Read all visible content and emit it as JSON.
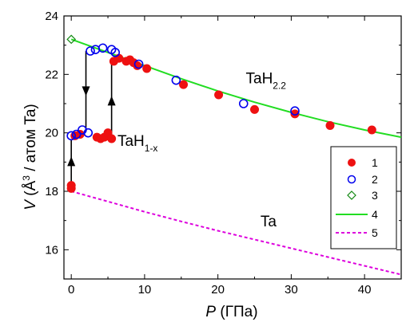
{
  "chart_data": {
    "type": "scatter",
    "xlim": [
      -1,
      45
    ],
    "ylim": [
      15,
      24
    ],
    "x_ticks": [
      {
        "value": 0,
        "label": "0"
      },
      {
        "value": 10,
        "label": "10"
      },
      {
        "value": 20,
        "label": "20"
      },
      {
        "value": 30,
        "label": "30"
      },
      {
        "value": 40,
        "label": "40"
      }
    ],
    "y_ticks": [
      {
        "value": 16,
        "label": "16"
      },
      {
        "value": 18,
        "label": "18"
      },
      {
        "value": 20,
        "label": "20"
      },
      {
        "value": 22,
        "label": "22"
      },
      {
        "value": 24,
        "label": "24"
      }
    ],
    "xlabel": {
      "main": "P",
      "unit": " (ГПа)"
    },
    "ylabel": {
      "main": "V",
      "paren_open": " (Å",
      "sup": "3",
      "rest": " / атом Ta)"
    },
    "legend_position": "right",
    "series": [
      {
        "name": "1",
        "marker": "filled-circle",
        "color": "#ee1111",
        "points": [
          [
            0,
            18.1
          ],
          [
            0,
            18.2
          ],
          [
            0.5,
            19.9
          ],
          [
            1.2,
            19.95
          ],
          [
            3.5,
            19.85
          ],
          [
            4,
            19.8
          ],
          [
            4.5,
            19.85
          ],
          [
            5,
            20.0
          ],
          [
            5.5,
            19.8
          ],
          [
            5.8,
            22.45
          ],
          [
            6.5,
            22.55
          ],
          [
            7.5,
            22.45
          ],
          [
            8,
            22.5
          ],
          [
            8.5,
            22.4
          ],
          [
            9,
            22.3
          ],
          [
            10.3,
            22.2
          ],
          [
            15.3,
            21.65
          ],
          [
            20.1,
            21.3
          ],
          [
            25,
            20.8
          ],
          [
            30.5,
            20.65
          ],
          [
            35.3,
            20.25
          ],
          [
            41,
            20.1
          ]
        ]
      },
      {
        "name": "2",
        "marker": "open-circle",
        "color": "#0000ee",
        "points": [
          [
            0,
            19.9
          ],
          [
            0.7,
            19.95
          ],
          [
            1.5,
            20.1
          ],
          [
            2.3,
            20.0
          ],
          [
            2.6,
            22.8
          ],
          [
            3.3,
            22.85
          ],
          [
            4.3,
            22.9
          ],
          [
            5.5,
            22.85
          ],
          [
            6,
            22.75
          ],
          [
            9.2,
            22.35
          ],
          [
            14.3,
            21.8
          ],
          [
            23.5,
            21.0
          ],
          [
            30.5,
            20.75
          ]
        ]
      },
      {
        "name": "3",
        "marker": "open-diamond",
        "color": "#118811",
        "points": [
          [
            0,
            23.2
          ]
        ]
      },
      {
        "name": "4",
        "marker": "line-solid",
        "color": "#22dd22",
        "points": [
          [
            0,
            23.2
          ],
          [
            5,
            22.75
          ],
          [
            10,
            22.3
          ],
          [
            15,
            21.85
          ],
          [
            20,
            21.43
          ],
          [
            25,
            21.05
          ],
          [
            30,
            20.7
          ],
          [
            35,
            20.38
          ],
          [
            40,
            20.1
          ],
          [
            45,
            19.85
          ]
        ]
      },
      {
        "name": "5",
        "marker": "line-dashed",
        "color": "#dd00dd",
        "points": [
          [
            0,
            18.0
          ],
          [
            5,
            17.65
          ],
          [
            10,
            17.3
          ],
          [
            15,
            16.97
          ],
          [
            20,
            16.65
          ],
          [
            25,
            16.35
          ],
          [
            30,
            16.05
          ],
          [
            35,
            15.75
          ],
          [
            40,
            15.45
          ],
          [
            45,
            15.15
          ]
        ]
      }
    ],
    "arrows": [
      {
        "x": 0,
        "y_from": 18.3,
        "y_to": 19.75,
        "direction": "up"
      },
      {
        "x": 2,
        "y_from": 22.8,
        "y_to": 20.05,
        "direction": "down"
      },
      {
        "x": 5.5,
        "y_from": 19.8,
        "y_to": 22.4,
        "direction": "up"
      }
    ],
    "annotations": [
      {
        "id": "tah22",
        "main": "TaH",
        "sub": "2.2",
        "x": 23.8,
        "y": 21.7
      },
      {
        "id": "tah1x",
        "main": "TaH",
        "sub": "1-x",
        "x": 6.3,
        "y": 19.55
      },
      {
        "id": "ta",
        "main": "Ta",
        "sub": "",
        "x": 25.8,
        "y": 16.8
      }
    ]
  }
}
